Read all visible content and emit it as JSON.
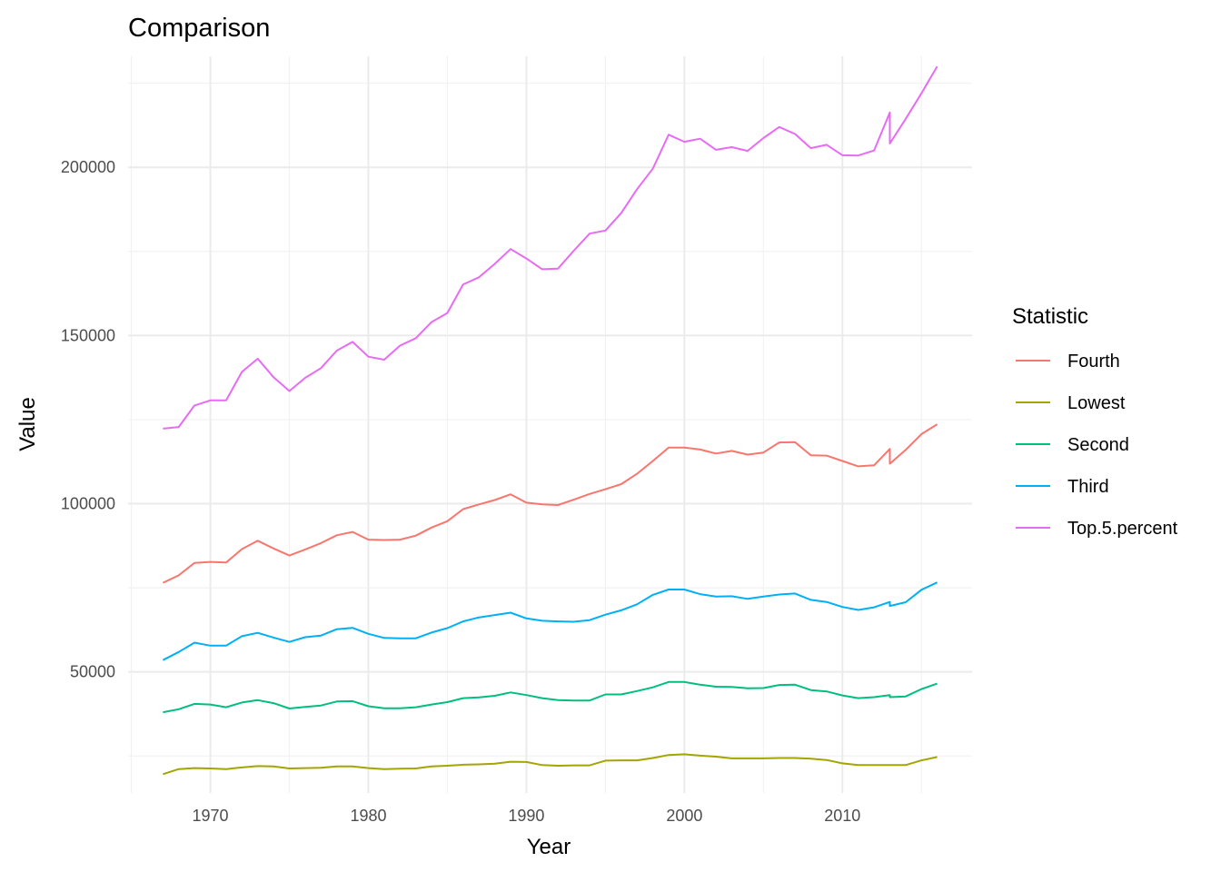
{
  "chart_data": {
    "type": "line",
    "title": "Comparison",
    "xlabel": "Year",
    "ylabel": "Value",
    "xlim": [
      1964.5,
      1968.5
    ],
    "ylim": [
      14000,
      233000
    ],
    "x_ticks": [
      1970,
      1980,
      1990,
      2000,
      2010
    ],
    "x_tick_labels": [
      "1970",
      "1980",
      "1990",
      "2000",
      "2010"
    ],
    "y_ticks": [
      50000,
      100000,
      150000,
      200000
    ],
    "y_tick_labels": [
      "50000",
      "100000",
      "150000",
      "200000"
    ],
    "grid": true,
    "legend_title": "Statistic",
    "legend_position": "right",
    "x": [
      1967,
      1968,
      1969,
      1970,
      1971,
      1972,
      1973,
      1974,
      1975,
      1976,
      1977,
      1978,
      1979,
      1980,
      1981,
      1982,
      1983,
      1984,
      1985,
      1986,
      1987,
      1988,
      1989,
      1990,
      1991,
      1992,
      1993,
      1994,
      1995,
      1996,
      1997,
      1998,
      1999,
      2000,
      2001,
      2002,
      2003,
      2004,
      2005,
      2006,
      2007,
      2008,
      2009,
      2010,
      2011,
      2012,
      2013,
      2013,
      2014,
      2015,
      2016
    ],
    "series": [
      {
        "name": "Fourth",
        "color": "#F8766D",
        "values": [
          76500,
          78700,
          82400,
          82700,
          82500,
          86500,
          89000,
          86700,
          84600,
          86400,
          88300,
          90600,
          91600,
          89300,
          89200,
          89300,
          90500,
          92900,
          94800,
          98400,
          99800,
          101100,
          102800,
          100300,
          99800,
          99600,
          101200,
          102900,
          104300,
          105800,
          108900,
          112700,
          116700,
          116700,
          116100,
          114900,
          115700,
          114600,
          115200,
          118200,
          118300,
          114400,
          114300,
          112700,
          111100,
          111400,
          116300,
          111900,
          116000,
          120700,
          123600
        ]
      },
      {
        "name": "Lowest",
        "color": "#A3A500",
        "values": [
          19600,
          21100,
          21400,
          21300,
          21100,
          21600,
          22000,
          21900,
          21300,
          21400,
          21500,
          21900,
          21900,
          21400,
          21100,
          21200,
          21300,
          21900,
          22100,
          22400,
          22500,
          22700,
          23300,
          23200,
          22300,
          22100,
          22200,
          22200,
          23600,
          23700,
          23700,
          24400,
          25300,
          25500,
          25100,
          24800,
          24300,
          24300,
          24300,
          24400,
          24400,
          24200,
          23800,
          22800,
          22300,
          22300,
          22300,
          22300,
          22300,
          23700,
          24700
        ]
      },
      {
        "name": "Second",
        "color": "#00BF7D",
        "values": [
          38000,
          38900,
          40500,
          40300,
          39500,
          40900,
          41600,
          40700,
          39100,
          39600,
          40000,
          41200,
          41300,
          39800,
          39200,
          39200,
          39500,
          40300,
          41000,
          42200,
          42400,
          42900,
          43900,
          43100,
          42200,
          41600,
          41500,
          41500,
          43300,
          43300,
          44300,
          45400,
          47000,
          47000,
          46200,
          45600,
          45500,
          45100,
          45200,
          46100,
          46200,
          44600,
          44200,
          43000,
          42200,
          42500,
          43100,
          42500,
          42700,
          44900,
          46500
        ]
      },
      {
        "name": "Third",
        "color": "#00B0F6",
        "values": [
          53500,
          55900,
          58700,
          57800,
          57800,
          60600,
          61600,
          60200,
          58900,
          60300,
          60800,
          62700,
          63100,
          61300,
          60100,
          60000,
          60000,
          61700,
          63000,
          65000,
          66200,
          66900,
          67600,
          65900,
          65200,
          65000,
          64900,
          65400,
          67000,
          68300,
          70100,
          72900,
          74500,
          74500,
          73100,
          72400,
          72500,
          71700,
          72400,
          73000,
          73300,
          71400,
          70800,
          69300,
          68400,
          69200,
          70800,
          69600,
          70700,
          74400,
          76600
        ]
      },
      {
        "name": "Top.5.percent",
        "color": "#E76BF3",
        "values": [
          122300,
          122800,
          129200,
          130700,
          130700,
          139200,
          143100,
          137600,
          133500,
          137400,
          140300,
          145500,
          148100,
          143700,
          142800,
          147000,
          149200,
          154000,
          156700,
          165200,
          167300,
          171300,
          175700,
          172900,
          169700,
          169900,
          175200,
          180300,
          181200,
          186400,
          193500,
          199600,
          209700,
          207600,
          208500,
          205200,
          206000,
          204900,
          208700,
          212000,
          209900,
          205700,
          206700,
          203600,
          203500,
          205000,
          216300,
          207100,
          214400,
          222000,
          230000
        ]
      }
    ]
  }
}
